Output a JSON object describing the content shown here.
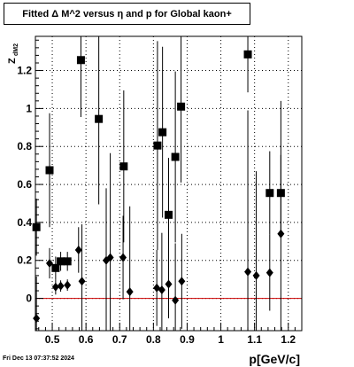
{
  "title": "Fitted Δ M^2 versus η and p for Global kaon+",
  "footer": "Fri Dec 13 07:37:52 2024",
  "chart_data": {
    "type": "scatter",
    "xlabel": "p[GeV/c]",
    "ylabel": "Z_{dM2}",
    "xlim": [
      0.45,
      1.24
    ],
    "ylim": [
      -0.17,
      1.38
    ],
    "x_ticks": [
      0.5,
      0.6,
      0.7,
      0.8,
      0.9,
      1.0,
      1.1,
      1.2
    ],
    "x_tick_labels": [
      "0.5",
      "0.6",
      "0.7",
      "0.8",
      "0.9",
      "1",
      "1.1",
      "1.2"
    ],
    "y_ticks": [
      0,
      0.2,
      0.4,
      0.6,
      0.8,
      1.0,
      1.2
    ],
    "y_tick_labels": [
      "0",
      "0.2",
      "0.4",
      "0.6",
      "0.8",
      "1",
      "1.2"
    ],
    "grid": true,
    "reference_line": {
      "y": 0,
      "color": "#cc0000"
    },
    "series": [
      {
        "marker": "square",
        "points": [
          {
            "x": 0.453,
            "y": 0.375,
            "err": 0.15
          },
          {
            "x": 0.492,
            "y": 0.675,
            "err": 0.3
          },
          {
            "x": 0.51,
            "y": 0.16,
            "err": 0.06
          },
          {
            "x": 0.525,
            "y": 0.195,
            "err": 0.05
          },
          {
            "x": 0.545,
            "y": 0.195,
            "err": 0.05
          },
          {
            "x": 0.585,
            "y": 1.255,
            "err": 0.3
          },
          {
            "x": 0.638,
            "y": 0.945,
            "err": 0.45
          },
          {
            "x": 0.712,
            "y": 0.695,
            "err": 0.4
          },
          {
            "x": 0.812,
            "y": 0.805,
            "err": 0.55
          },
          {
            "x": 0.827,
            "y": 0.875,
            "err": 0.45
          },
          {
            "x": 0.845,
            "y": 0.44,
            "err": 0.3
          },
          {
            "x": 0.865,
            "y": 0.745,
            "err": 0.45
          },
          {
            "x": 0.882,
            "y": 1.01,
            "err": 0.4
          },
          {
            "x": 1.08,
            "y": 1.285,
            "err": 0.2
          },
          {
            "x": 1.145,
            "y": 0.555,
            "err": 0.22
          },
          {
            "x": 1.178,
            "y": 0.555,
            "err": 0.2
          }
        ]
      },
      {
        "marker": "diamond",
        "points": [
          {
            "x": 0.453,
            "y": -0.105,
            "err": 0.22
          },
          {
            "x": 0.492,
            "y": 0.185,
            "err": 0.08
          },
          {
            "x": 0.51,
            "y": 0.06,
            "err": 0.04
          },
          {
            "x": 0.525,
            "y": 0.065,
            "err": 0.03
          },
          {
            "x": 0.545,
            "y": 0.07,
            "err": 0.03
          },
          {
            "x": 0.578,
            "y": 0.255,
            "err": 0.12
          },
          {
            "x": 0.588,
            "y": 0.09,
            "err": 0.3
          },
          {
            "x": 0.66,
            "y": 0.2,
            "err": 0.38
          },
          {
            "x": 0.672,
            "y": 0.215,
            "err": 0.55
          },
          {
            "x": 0.71,
            "y": 0.215,
            "err": 0.22
          },
          {
            "x": 0.73,
            "y": 0.035,
            "err": 0.45
          },
          {
            "x": 0.81,
            "y": 0.055,
            "err": 0.2
          },
          {
            "x": 0.825,
            "y": 0.045,
            "err": 0.3
          },
          {
            "x": 0.845,
            "y": 0.075,
            "err": 0.18
          },
          {
            "x": 0.865,
            "y": -0.01,
            "err": 0.3
          },
          {
            "x": 0.884,
            "y": 0.09,
            "err": 0.25
          },
          {
            "x": 1.08,
            "y": 0.14,
            "err": 0.85
          },
          {
            "x": 1.105,
            "y": 0.12,
            "err": 0.55
          },
          {
            "x": 1.145,
            "y": 0.135,
            "err": 0.2
          },
          {
            "x": 1.178,
            "y": 0.34,
            "err": 0.7
          }
        ]
      }
    ]
  }
}
